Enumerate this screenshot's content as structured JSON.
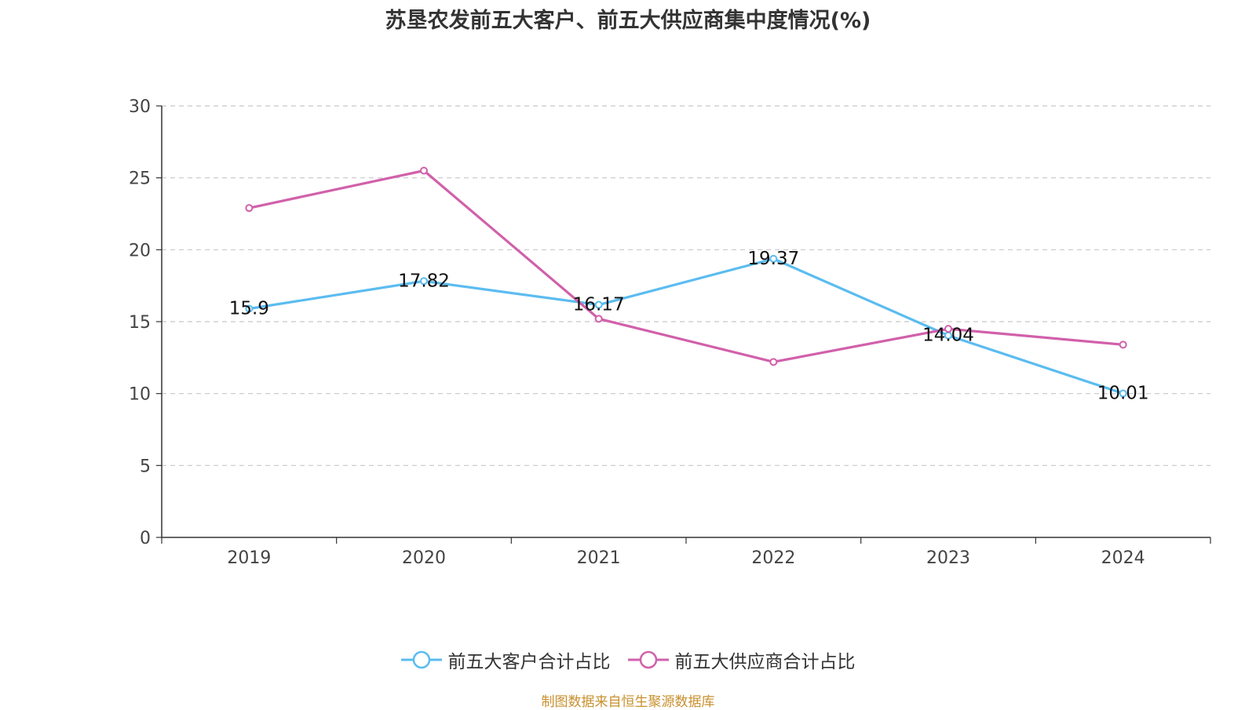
{
  "chart_data": {
    "type": "line",
    "title": "苏垦农发前五大客户、前五大供应商集中度情况(%)",
    "categories": [
      "2019",
      "2020",
      "2021",
      "2022",
      "2023",
      "2024"
    ],
    "series": [
      {
        "name": "前五大客户合计占比",
        "color": "#5bbcf0",
        "values": [
          15.9,
          17.82,
          16.17,
          19.37,
          14.04,
          10.01
        ],
        "show_labels": true
      },
      {
        "name": "前五大供应商合计占比",
        "color": "#d160aa",
        "values": [
          22.9,
          25.5,
          15.2,
          12.2,
          14.5,
          13.4
        ],
        "show_labels": false
      }
    ],
    "ylim": [
      0,
      30
    ],
    "yticks": [
      0,
      5,
      10,
      15,
      20,
      25,
      30
    ],
    "grid": true,
    "legend_position": "bottom"
  },
  "source": "制图数据来自恒生聚源数据库"
}
